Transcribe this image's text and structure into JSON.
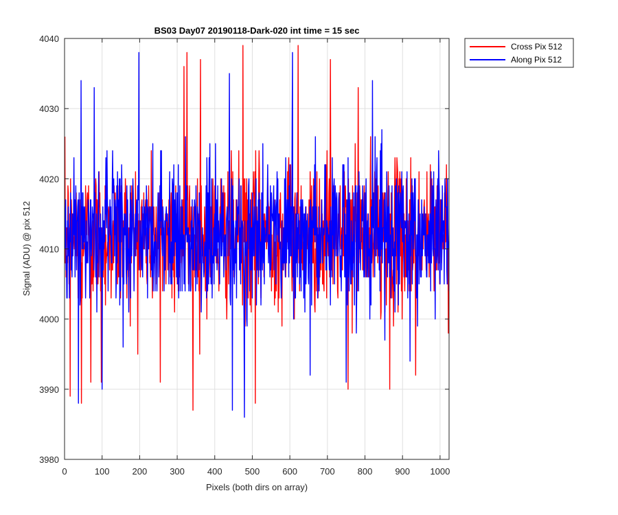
{
  "chart_data": {
    "type": "line",
    "title": "BS03 Day07 20190118-Dark-020 int time = 15 sec",
    "xlabel": "Pixels (both dirs on array)",
    "ylabel": "Signal (ADU) @ pix 512",
    "xlim": [
      0,
      1024
    ],
    "ylim": [
      3980,
      4040
    ],
    "xticks": [
      0,
      100,
      200,
      300,
      400,
      500,
      600,
      700,
      800,
      900,
      1000
    ],
    "yticks": [
      3980,
      3990,
      4000,
      4010,
      4020,
      4030,
      4040
    ],
    "grid": true,
    "legend_location": "outside-top-right",
    "x_range_of_series": [
      1,
      1024
    ],
    "series": [
      {
        "name": "Cross Pix 512",
        "color": "#ff0000",
        "mean": 4012,
        "spread": 7,
        "notable_points": [
          {
            "x": 15,
            "y": 3989
          },
          {
            "x": 45,
            "y": 3988
          },
          {
            "x": 70,
            "y": 3991
          },
          {
            "x": 98,
            "y": 3991
          },
          {
            "x": 255,
            "y": 3991
          },
          {
            "x": 318,
            "y": 4036
          },
          {
            "x": 326,
            "y": 4038
          },
          {
            "x": 342,
            "y": 3987
          },
          {
            "x": 362,
            "y": 4037
          },
          {
            "x": 475,
            "y": 4039
          },
          {
            "x": 508,
            "y": 3988
          },
          {
            "x": 622,
            "y": 4039
          },
          {
            "x": 708,
            "y": 4037
          },
          {
            "x": 755,
            "y": 3990
          },
          {
            "x": 782,
            "y": 4033
          },
          {
            "x": 866,
            "y": 3990
          },
          {
            "x": 935,
            "y": 3992
          }
        ]
      },
      {
        "name": "Along Pix 512",
        "color": "#0000ff",
        "mean": 4012,
        "spread": 7,
        "notable_points": [
          {
            "x": 37,
            "y": 3988
          },
          {
            "x": 44,
            "y": 4034
          },
          {
            "x": 79,
            "y": 4033
          },
          {
            "x": 100,
            "y": 3990
          },
          {
            "x": 198,
            "y": 4038
          },
          {
            "x": 439,
            "y": 4035
          },
          {
            "x": 447,
            "y": 3987
          },
          {
            "x": 479,
            "y": 3986
          },
          {
            "x": 607,
            "y": 4038
          },
          {
            "x": 654,
            "y": 3992
          },
          {
            "x": 750,
            "y": 3991
          },
          {
            "x": 820,
            "y": 4034
          },
          {
            "x": 920,
            "y": 3994
          }
        ]
      }
    ]
  }
}
